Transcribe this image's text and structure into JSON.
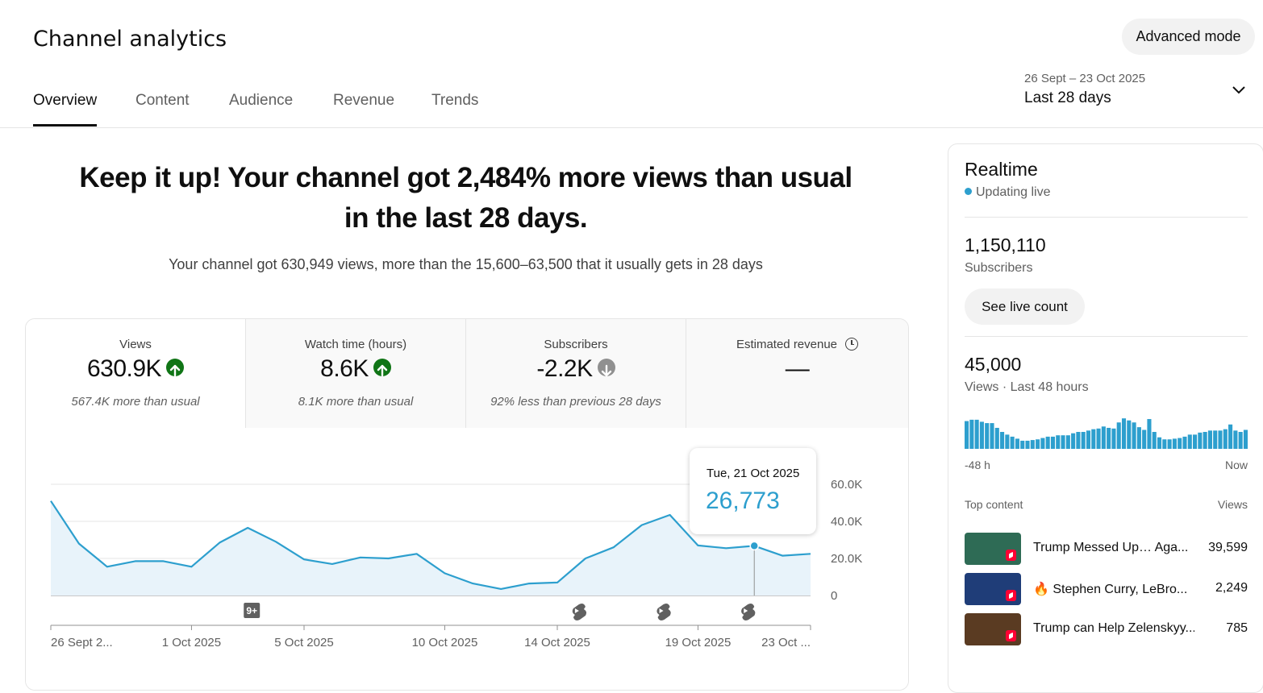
{
  "header": {
    "title": "Channel analytics",
    "advanced_mode": "Advanced mode",
    "tabs": [
      {
        "label": "Overview"
      },
      {
        "label": "Content"
      },
      {
        "label": "Audience"
      },
      {
        "label": "Revenue"
      },
      {
        "label": "Trends"
      }
    ],
    "date_range": "26 Sept – 23 Oct 2025",
    "date_label": "Last 28 days"
  },
  "summary": {
    "headline": "Keep it up! Your channel got 2,484% more views than usual in the last 28 days.",
    "subline": "Your channel got 630,949 views, more than the 15,600–63,500 that it usually gets in 28 days"
  },
  "metrics": [
    {
      "label": "Views",
      "value": "630.9K",
      "note": "567.4K more than usual",
      "trend": "up"
    },
    {
      "label": "Watch time (hours)",
      "value": "8.6K",
      "note": "8.1K more than usual",
      "trend": "up"
    },
    {
      "label": "Subscribers",
      "value": "-2.2K",
      "note": "92% less than previous 28 days",
      "trend": "down"
    },
    {
      "label": "Estimated revenue",
      "value": "—",
      "note": "",
      "trend": "none"
    }
  ],
  "chart_data": {
    "type": "area",
    "y_ticks": [
      "60.0K",
      "40.0K",
      "20.0K",
      "0"
    ],
    "ylim": [
      0,
      60000
    ],
    "x_tick_labels": [
      "26 Sept 2...",
      "1 Oct 2025",
      "5 Oct 2025",
      "10 Oct 2025",
      "14 Oct 2025",
      "19 Oct 2025",
      "23 Oct ..."
    ],
    "series": [
      {
        "values": [
          51000,
          28000,
          15500,
          18500,
          18500,
          15500,
          28500,
          36500,
          29000,
          19500,
          17000,
          20500,
          20000,
          22500,
          12000,
          6500,
          3500,
          6500,
          7000,
          20000,
          26000,
          38000,
          43500,
          27000,
          25500,
          26773,
          21500,
          22500
        ]
      }
    ],
    "grid": true,
    "markers": [
      {
        "label": "9+",
        "type": "badge"
      },
      {
        "label": "",
        "type": "shorts-icon"
      },
      {
        "label": "",
        "type": "shorts-icon"
      },
      {
        "label": "",
        "type": "shorts-icon"
      }
    ],
    "tooltip": {
      "date": "Tue, 21 Oct 2025",
      "value": "26,773"
    },
    "color": "#2d9fce"
  },
  "realtime": {
    "title": "Realtime",
    "live": "Updating live",
    "subscribers": "1,150,110",
    "subscribers_label": "Subscribers",
    "live_count_button": "See live count",
    "views": "45,000",
    "views_label": "Views · Last 48 hours",
    "bars": [
      0.82,
      0.86,
      0.86,
      0.8,
      0.76,
      0.76,
      0.62,
      0.5,
      0.42,
      0.36,
      0.3,
      0.24,
      0.24,
      0.26,
      0.28,
      0.32,
      0.36,
      0.36,
      0.4,
      0.4,
      0.4,
      0.46,
      0.5,
      0.5,
      0.54,
      0.58,
      0.6,
      0.66,
      0.62,
      0.6,
      0.78,
      0.9,
      0.84,
      0.78,
      0.64,
      0.56,
      0.88,
      0.5,
      0.34,
      0.28,
      0.28,
      0.3,
      0.32,
      0.36,
      0.42,
      0.42,
      0.48,
      0.5,
      0.54,
      0.54,
      0.54,
      0.58,
      0.72,
      0.54,
      0.5,
      0.56
    ],
    "axis_left": "-48 h",
    "axis_right": "Now",
    "top_content_label": "Top content",
    "top_content_views_label": "Views",
    "top_content": [
      {
        "title": "Trump Messed Up… Aga...",
        "views": "39,599",
        "thumb": "#2e6b55"
      },
      {
        "title": "🔥 Stephen Curry, LeBro...",
        "views": "2,249",
        "thumb": "#1f3d78"
      },
      {
        "title": "Trump can Help Zelenskyy....",
        "views": "785",
        "thumb": "#5a3b22"
      }
    ]
  }
}
